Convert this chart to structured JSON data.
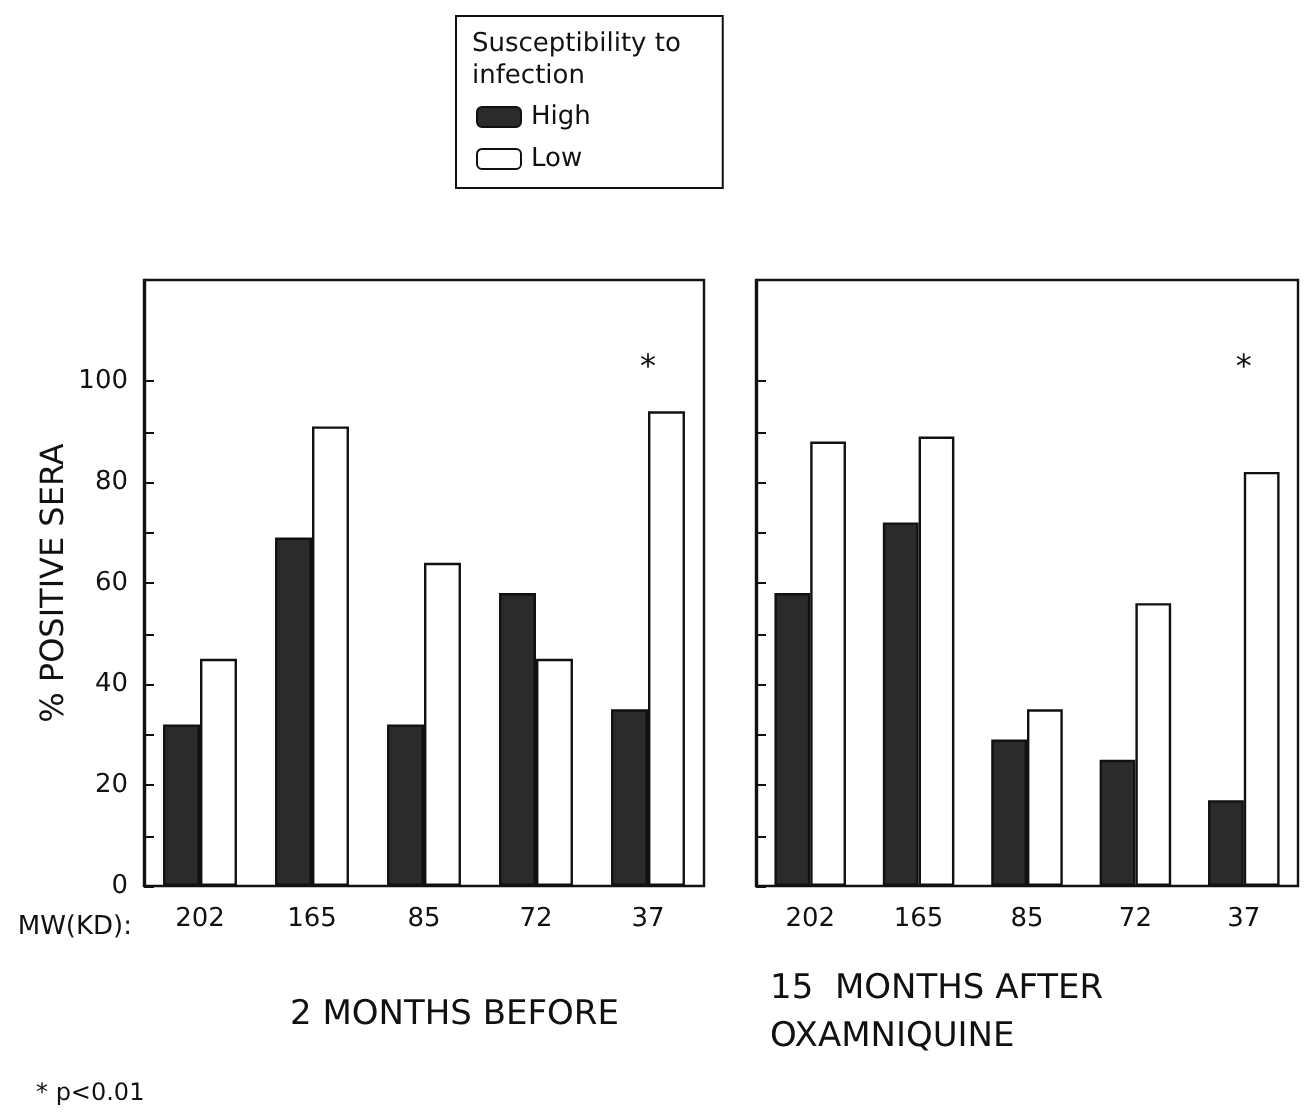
{
  "chart_data": [
    {
      "type": "bar",
      "title": "2 MONTHS BEFORE",
      "xlabel": "MW(KD):",
      "ylabel": "% POSITIVE SERA",
      "legend_title": "Susceptibility to infection",
      "legend": "top",
      "categories": [
        "202",
        "165",
        "85",
        "72",
        "37"
      ],
      "series": [
        {
          "name": "High",
          "color": "#2b2b2b",
          "values": [
            32,
            69,
            32,
            58,
            35
          ]
        },
        {
          "name": "Low",
          "color": "#ffffff",
          "values": [
            45,
            91,
            64,
            45,
            94
          ]
        }
      ],
      "ylim": [
        0,
        120
      ],
      "yticks": [
        0,
        {
          "value": 10,
          "label": null
        },
        20,
        {
          "value": 30,
          "label": null
        },
        40,
        {
          "value": 50,
          "label": null
        },
        60,
        {
          "value": 70,
          "label": null
        },
        80,
        {
          "value": 90,
          "label": null
        },
        100
      ],
      "annotations": [
        "*",
        "* p<0.01"
      ]
    },
    {
      "type": "bar",
      "title": "15  MONTHS AFTER\nOXAMNIQUINE",
      "tick_labels": "x",
      "categories": [
        "202",
        "165",
        "85",
        "72",
        "37"
      ],
      "series": [
        {
          "color": "#2b2b2b",
          "values": [
            58,
            72,
            29,
            25,
            17
          ]
        },
        {
          "color": "#ffffff",
          "values": [
            88,
            89,
            35,
            56,
            82
          ]
        }
      ],
      "ylim": [
        0,
        120
      ],
      "yticks": [
        0,
        10,
        20,
        30,
        40,
        50,
        60,
        70,
        80,
        90,
        100
      ],
      "annotations": [
        "*"
      ]
    }
  ]
}
